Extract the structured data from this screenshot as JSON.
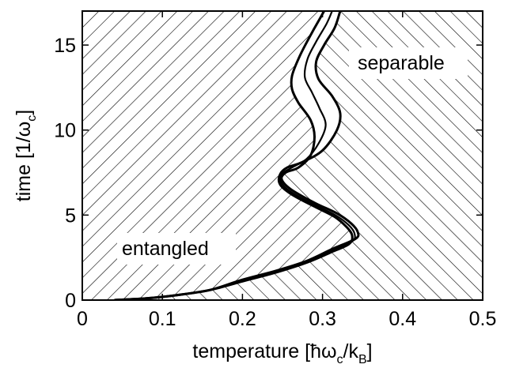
{
  "chart_data": {
    "type": "line",
    "x_ticks": [
      "0",
      "0.1",
      "0.2",
      "0.3",
      "0.4",
      "0.5"
    ],
    "y_ticks": [
      "0",
      "5",
      "10",
      "15"
    ],
    "xlim": [
      0,
      0.5
    ],
    "ylim": [
      0,
      17
    ],
    "xlabel": {
      "pre": "temperature [",
      "hbar": "ħ",
      "omega": "ω",
      "omega_sub": "c",
      "slash": "/k",
      "k_sub": "B",
      "post": "]"
    },
    "ylabel": {
      "pre": "time [1/",
      "omega": "ω",
      "omega_sub": "c",
      "post": "]"
    },
    "regions": {
      "left": "entangled",
      "right": "separable"
    },
    "grid": false,
    "series": [
      {
        "style": "boundary-lower",
        "points": [
          [
            0.04,
            0.0
          ],
          [
            0.08,
            0.1
          ],
          [
            0.12,
            0.3
          ],
          [
            0.16,
            0.6
          ],
          [
            0.2,
            1.1
          ],
          [
            0.24,
            1.6
          ],
          [
            0.28,
            2.2
          ],
          [
            0.31,
            2.8
          ],
          [
            0.333,
            3.3
          ],
          [
            0.337,
            3.8
          ],
          [
            0.33,
            4.3
          ],
          [
            0.315,
            4.9
          ],
          [
            0.29,
            5.5
          ],
          [
            0.262,
            6.2
          ],
          [
            0.247,
            6.8
          ],
          [
            0.247,
            7.4
          ],
          [
            0.256,
            7.8
          ],
          [
            0.274,
            8.1
          ],
          [
            0.3,
            8.8
          ],
          [
            0.318,
            10.0
          ],
          [
            0.322,
            11.0
          ],
          [
            0.312,
            12.0
          ],
          [
            0.295,
            13.0
          ],
          [
            0.292,
            14.0
          ],
          [
            0.302,
            15.0
          ],
          [
            0.315,
            16.0
          ],
          [
            0.322,
            17.0
          ]
        ]
      },
      {
        "style": "boundary-upper",
        "points": [
          [
            0.04,
            0.0
          ],
          [
            0.08,
            0.1
          ],
          [
            0.12,
            0.3
          ],
          [
            0.16,
            0.6
          ],
          [
            0.2,
            1.2
          ],
          [
            0.24,
            1.7
          ],
          [
            0.28,
            2.3
          ],
          [
            0.312,
            3.0
          ],
          [
            0.341,
            3.6
          ],
          [
            0.344,
            4.0
          ],
          [
            0.336,
            4.5
          ],
          [
            0.318,
            5.1
          ],
          [
            0.291,
            5.7
          ],
          [
            0.261,
            6.5
          ],
          [
            0.249,
            7.1
          ],
          [
            0.254,
            7.5
          ],
          [
            0.27,
            7.8
          ],
          [
            0.285,
            8.5
          ],
          [
            0.29,
            9.6
          ],
          [
            0.285,
            10.6
          ],
          [
            0.27,
            11.6
          ],
          [
            0.262,
            12.4
          ],
          [
            0.262,
            13.2
          ],
          [
            0.271,
            14.3
          ],
          [
            0.283,
            15.4
          ],
          [
            0.296,
            16.5
          ],
          [
            0.302,
            17.0
          ]
        ]
      },
      {
        "style": "boundary-middle",
        "points": [
          [
            0.04,
            0.0
          ],
          [
            0.08,
            0.1
          ],
          [
            0.12,
            0.3
          ],
          [
            0.16,
            0.6
          ],
          [
            0.2,
            1.15
          ],
          [
            0.24,
            1.65
          ],
          [
            0.28,
            2.25
          ],
          [
            0.311,
            2.9
          ],
          [
            0.337,
            3.45
          ],
          [
            0.34,
            3.9
          ],
          [
            0.333,
            4.4
          ],
          [
            0.316,
            5.0
          ],
          [
            0.29,
            5.6
          ],
          [
            0.261,
            6.35
          ],
          [
            0.248,
            6.95
          ],
          [
            0.25,
            7.45
          ],
          [
            0.262,
            7.8
          ],
          [
            0.28,
            8.3
          ],
          [
            0.295,
            9.2
          ],
          [
            0.304,
            10.3
          ],
          [
            0.296,
            11.3
          ],
          [
            0.287,
            12.2
          ],
          [
            0.278,
            13.1
          ],
          [
            0.281,
            14.15
          ],
          [
            0.292,
            15.2
          ],
          [
            0.305,
            16.25
          ],
          [
            0.312,
            17.0
          ]
        ]
      }
    ]
  }
}
